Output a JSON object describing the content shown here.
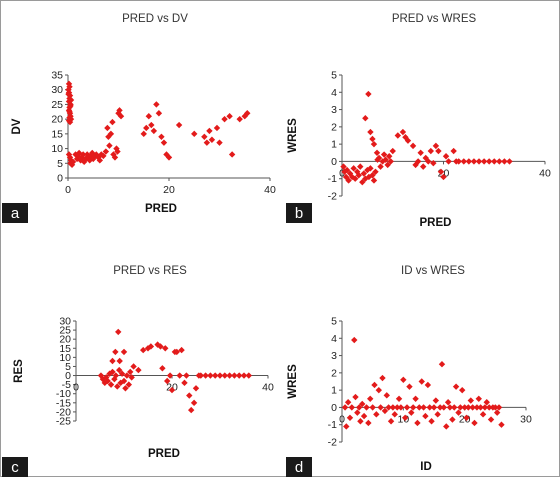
{
  "marker_color": "#e31b1b",
  "chart_data": [
    {
      "panel": "a",
      "type": "scatter",
      "title": "PRED vs DV",
      "xlabel": "PRED",
      "ylabel": "DV",
      "xlim": [
        0,
        40
      ],
      "ylim": [
        0,
        35
      ],
      "xticks": [
        0,
        20,
        40
      ],
      "yticks": [
        0,
        5,
        10,
        15,
        20,
        25,
        30,
        35
      ],
      "x_axis_at": 0,
      "points": [
        [
          0.2,
          32
        ],
        [
          0.3,
          31
        ],
        [
          0.1,
          30
        ],
        [
          0.2,
          29
        ],
        [
          0.4,
          28
        ],
        [
          0.3,
          27
        ],
        [
          0.2,
          26
        ],
        [
          0.5,
          25
        ],
        [
          0.3,
          24
        ],
        [
          0.2,
          23
        ],
        [
          0.4,
          22
        ],
        [
          0.5,
          21
        ],
        [
          0.3,
          20.5
        ],
        [
          0.6,
          20
        ],
        [
          0.2,
          19.5
        ],
        [
          0.4,
          19
        ],
        [
          0.1,
          28.5
        ],
        [
          0.6,
          26.5
        ],
        [
          0.3,
          22.5
        ],
        [
          0.5,
          24.5
        ],
        [
          0.2,
          8
        ],
        [
          0.4,
          7
        ],
        [
          0.6,
          6
        ],
        [
          0.5,
          5
        ],
        [
          0.8,
          4.5
        ],
        [
          1,
          5.5
        ],
        [
          1.5,
          8
        ],
        [
          1.8,
          6.5
        ],
        [
          2,
          7.5
        ],
        [
          2.2,
          8.5
        ],
        [
          2.5,
          6
        ],
        [
          2.8,
          7
        ],
        [
          3,
          8
        ],
        [
          3.2,
          5.5
        ],
        [
          3.5,
          6.5
        ],
        [
          3.8,
          8
        ],
        [
          4,
          7
        ],
        [
          4.3,
          6
        ],
        [
          4.5,
          7.5
        ],
        [
          4.8,
          8.5
        ],
        [
          5,
          6.5
        ],
        [
          5.3,
          7.5
        ],
        [
          5.6,
          8
        ],
        [
          6,
          7
        ],
        [
          6.3,
          6
        ],
        [
          6.6,
          8
        ],
        [
          7,
          7.5
        ],
        [
          7.5,
          9
        ],
        [
          7.8,
          17
        ],
        [
          8,
          14
        ],
        [
          8.2,
          11
        ],
        [
          8.5,
          15
        ],
        [
          8.8,
          19
        ],
        [
          9,
          8
        ],
        [
          9.3,
          7
        ],
        [
          9.6,
          10
        ],
        [
          9.8,
          9
        ],
        [
          10,
          22
        ],
        [
          10.2,
          23
        ],
        [
          10.5,
          21
        ],
        [
          15,
          15
        ],
        [
          15.5,
          17
        ],
        [
          16,
          21
        ],
        [
          16.5,
          18
        ],
        [
          17,
          16
        ],
        [
          17.5,
          25
        ],
        [
          18,
          22
        ],
        [
          18.5,
          14
        ],
        [
          19,
          12
        ],
        [
          19.5,
          8
        ],
        [
          20,
          7
        ],
        [
          22,
          18
        ],
        [
          25,
          15
        ],
        [
          27,
          14
        ],
        [
          27.5,
          12
        ],
        [
          28,
          16
        ],
        [
          28.5,
          13
        ],
        [
          29.5,
          17
        ],
        [
          30,
          12
        ],
        [
          31,
          20
        ],
        [
          32,
          21
        ],
        [
          32.5,
          8
        ],
        [
          34,
          20
        ],
        [
          35,
          21
        ],
        [
          35.5,
          22
        ]
      ]
    },
    {
      "panel": "b",
      "type": "scatter",
      "title": "PRED vs WRES",
      "xlabel": "PRED",
      "ylabel": "WRES",
      "xlim": [
        0,
        40
      ],
      "ylim": [
        -2,
        5
      ],
      "xticks": [
        0,
        20,
        40
      ],
      "yticks": [
        -2,
        -1,
        0,
        1,
        2,
        3,
        4,
        5
      ],
      "x_axis_at": 0,
      "points": [
        [
          0.3,
          -0.3
        ],
        [
          0.5,
          -0.6
        ],
        [
          0.8,
          -0.9
        ],
        [
          1,
          -0.5
        ],
        [
          1.3,
          -1.1
        ],
        [
          1.6,
          -0.7
        ],
        [
          2,
          -0.9
        ],
        [
          2.3,
          -0.4
        ],
        [
          2.6,
          -1
        ],
        [
          3,
          -0.6
        ],
        [
          3.3,
          -0.8
        ],
        [
          3.6,
          -0.3
        ],
        [
          4,
          -1.2
        ],
        [
          4.3,
          -0.7
        ],
        [
          4.6,
          -1
        ],
        [
          5,
          -0.5
        ],
        [
          5.3,
          -0.9
        ],
        [
          5.6,
          -0.4
        ],
        [
          6,
          -0.8
        ],
        [
          6.3,
          -1.1
        ],
        [
          6.6,
          -0.6
        ],
        [
          7,
          0.1
        ],
        [
          7.3,
          0.2
        ],
        [
          7.6,
          -0.3
        ],
        [
          8,
          0
        ],
        [
          8.3,
          0.4
        ],
        [
          8.6,
          0.1
        ],
        [
          9,
          -0.2
        ],
        [
          9.3,
          0.3
        ],
        [
          9.6,
          0
        ],
        [
          5.2,
          3.9
        ],
        [
          4.6,
          2.5
        ],
        [
          5.6,
          1.7
        ],
        [
          6,
          1.3
        ],
        [
          6.3,
          1
        ],
        [
          6.9,
          0.5
        ],
        [
          10,
          0.6
        ],
        [
          11,
          1.5
        ],
        [
          12,
          1.7
        ],
        [
          12.5,
          1.4
        ],
        [
          13,
          1.2
        ],
        [
          14,
          0.9
        ],
        [
          14.5,
          -0.2
        ],
        [
          15,
          0
        ],
        [
          15.5,
          0.5
        ],
        [
          16,
          -0.3
        ],
        [
          16.5,
          0.2
        ],
        [
          17,
          0
        ],
        [
          17.5,
          0.6
        ],
        [
          18,
          -0.1
        ],
        [
          18.5,
          0.9
        ],
        [
          19,
          0.6
        ],
        [
          19.5,
          -0.6
        ],
        [
          20,
          -0.9
        ],
        [
          20.5,
          0.3
        ],
        [
          21,
          0
        ],
        [
          22,
          0.6
        ],
        [
          22.5,
          0
        ],
        [
          23,
          0
        ],
        [
          24,
          0
        ],
        [
          25,
          0
        ],
        [
          26,
          0
        ],
        [
          27,
          0
        ],
        [
          28,
          0
        ],
        [
          29,
          0
        ],
        [
          30,
          0
        ],
        [
          31,
          0
        ],
        [
          32,
          0
        ],
        [
          33,
          0
        ]
      ]
    },
    {
      "panel": "c",
      "type": "scatter",
      "title": "PRED vs RES",
      "xlabel": "PRED",
      "ylabel": "RES",
      "xlim": [
        0,
        40
      ],
      "ylim": [
        -25,
        30
      ],
      "xticks": [
        0,
        20,
        40
      ],
      "yticks": [
        -25,
        -20,
        -15,
        -10,
        -5,
        0,
        5,
        10,
        15,
        20,
        25,
        30
      ],
      "x_axis_at": 0,
      "points": [
        [
          5.2,
          0
        ],
        [
          5.6,
          -2
        ],
        [
          6,
          -4
        ],
        [
          6.3,
          -1
        ],
        [
          6.6,
          -3
        ],
        [
          7,
          1
        ],
        [
          7.3,
          -5
        ],
        [
          7.6,
          2
        ],
        [
          8,
          -2
        ],
        [
          8.3,
          0
        ],
        [
          8.6,
          -6
        ],
        [
          9,
          3
        ],
        [
          9.3,
          -4
        ],
        [
          9.6,
          1
        ],
        [
          10,
          -3
        ],
        [
          10.3,
          -7
        ],
        [
          10.6,
          0
        ],
        [
          11,
          -5
        ],
        [
          11.3,
          2
        ],
        [
          11.6,
          -1
        ],
        [
          8.8,
          24
        ],
        [
          8.2,
          13
        ],
        [
          7.6,
          8
        ],
        [
          9.1,
          8
        ],
        [
          10,
          13
        ],
        [
          12,
          5
        ],
        [
          13,
          3
        ],
        [
          14,
          14
        ],
        [
          15,
          15
        ],
        [
          15.6,
          16
        ],
        [
          17,
          17
        ],
        [
          17.6,
          16
        ],
        [
          18,
          4
        ],
        [
          18.6,
          15
        ],
        [
          19,
          -3
        ],
        [
          19.6,
          0
        ],
        [
          20,
          -8
        ],
        [
          20.6,
          13
        ],
        [
          21,
          13
        ],
        [
          21.6,
          0
        ],
        [
          22,
          14
        ],
        [
          22.6,
          -4
        ],
        [
          23,
          0
        ],
        [
          23.6,
          -11
        ],
        [
          24,
          -19
        ],
        [
          24.6,
          -15
        ],
        [
          25,
          -7
        ],
        [
          25.6,
          0
        ],
        [
          26,
          0
        ],
        [
          27,
          0
        ],
        [
          28,
          0
        ],
        [
          29,
          0
        ],
        [
          30,
          0
        ],
        [
          31,
          0
        ],
        [
          32,
          0
        ],
        [
          33,
          0
        ],
        [
          34,
          0
        ],
        [
          35,
          0
        ],
        [
          36,
          0
        ]
      ]
    },
    {
      "panel": "d",
      "type": "scatter",
      "title": "ID vs WRES",
      "xlabel": "ID",
      "ylabel": "WRES",
      "xlim": [
        0,
        30
      ],
      "ylim": [
        -2,
        5
      ],
      "xticks": [
        0,
        10,
        20,
        30
      ],
      "yticks": [
        -2,
        -1,
        0,
        1,
        2,
        3,
        4,
        5
      ],
      "x_axis_at": 0,
      "points": [
        [
          0.5,
          0
        ],
        [
          0.7,
          -1.1
        ],
        [
          1,
          0.3
        ],
        [
          1.3,
          -0.6
        ],
        [
          1.6,
          0
        ],
        [
          2,
          3.9
        ],
        [
          2.2,
          0.6
        ],
        [
          2.5,
          -0.3
        ],
        [
          2.8,
          0
        ],
        [
          3,
          -0.8
        ],
        [
          3.3,
          0.2
        ],
        [
          3.6,
          -0.5
        ],
        [
          4,
          0
        ],
        [
          4.3,
          -0.9
        ],
        [
          4.6,
          0.5
        ],
        [
          5,
          0
        ],
        [
          5.3,
          1.3
        ],
        [
          5.6,
          -0.4
        ],
        [
          6,
          1
        ],
        [
          6.3,
          0
        ],
        [
          6.6,
          1.7
        ],
        [
          7,
          -0.2
        ],
        [
          7.3,
          0.7
        ],
        [
          7.6,
          0
        ],
        [
          8,
          -0.8
        ],
        [
          8.3,
          0
        ],
        [
          8.6,
          -0.4
        ],
        [
          9,
          0
        ],
        [
          9.3,
          0.5
        ],
        [
          9.6,
          0
        ],
        [
          10,
          1.6
        ],
        [
          10.3,
          -0.6
        ],
        [
          10.6,
          0
        ],
        [
          11,
          1.2
        ],
        [
          11.3,
          -0.3
        ],
        [
          11.6,
          0
        ],
        [
          12,
          0.5
        ],
        [
          12.3,
          -0.9
        ],
        [
          12.6,
          0
        ],
        [
          13,
          1.5
        ],
        [
          13.3,
          0
        ],
        [
          13.6,
          -0.5
        ],
        [
          14,
          1.3
        ],
        [
          14.3,
          0
        ],
        [
          14.6,
          -0.8
        ],
        [
          15,
          0
        ],
        [
          15.3,
          0.4
        ],
        [
          15.6,
          -0.4
        ],
        [
          16,
          0
        ],
        [
          16.3,
          2.5
        ],
        [
          16.6,
          0
        ],
        [
          17,
          -1.1
        ],
        [
          17.3,
          0.3
        ],
        [
          17.6,
          0
        ],
        [
          18,
          -0.7
        ],
        [
          18.3,
          0
        ],
        [
          18.6,
          1.2
        ],
        [
          19,
          -0.3
        ],
        [
          19.3,
          0
        ],
        [
          19.6,
          1
        ],
        [
          20,
          0
        ],
        [
          20.3,
          -0.6
        ],
        [
          20.6,
          0
        ],
        [
          21,
          0.4
        ],
        [
          21.3,
          0
        ],
        [
          21.6,
          -0.9
        ],
        [
          22,
          0
        ],
        [
          22.3,
          0.5
        ],
        [
          22.6,
          0
        ],
        [
          23,
          -0.4
        ],
        [
          23.3,
          0
        ],
        [
          23.6,
          0.3
        ],
        [
          24,
          0
        ],
        [
          24.3,
          -0.7
        ],
        [
          24.6,
          0
        ],
        [
          25,
          0
        ],
        [
          25.3,
          -0.3
        ],
        [
          25.6,
          0
        ],
        [
          26,
          -1
        ]
      ]
    }
  ]
}
